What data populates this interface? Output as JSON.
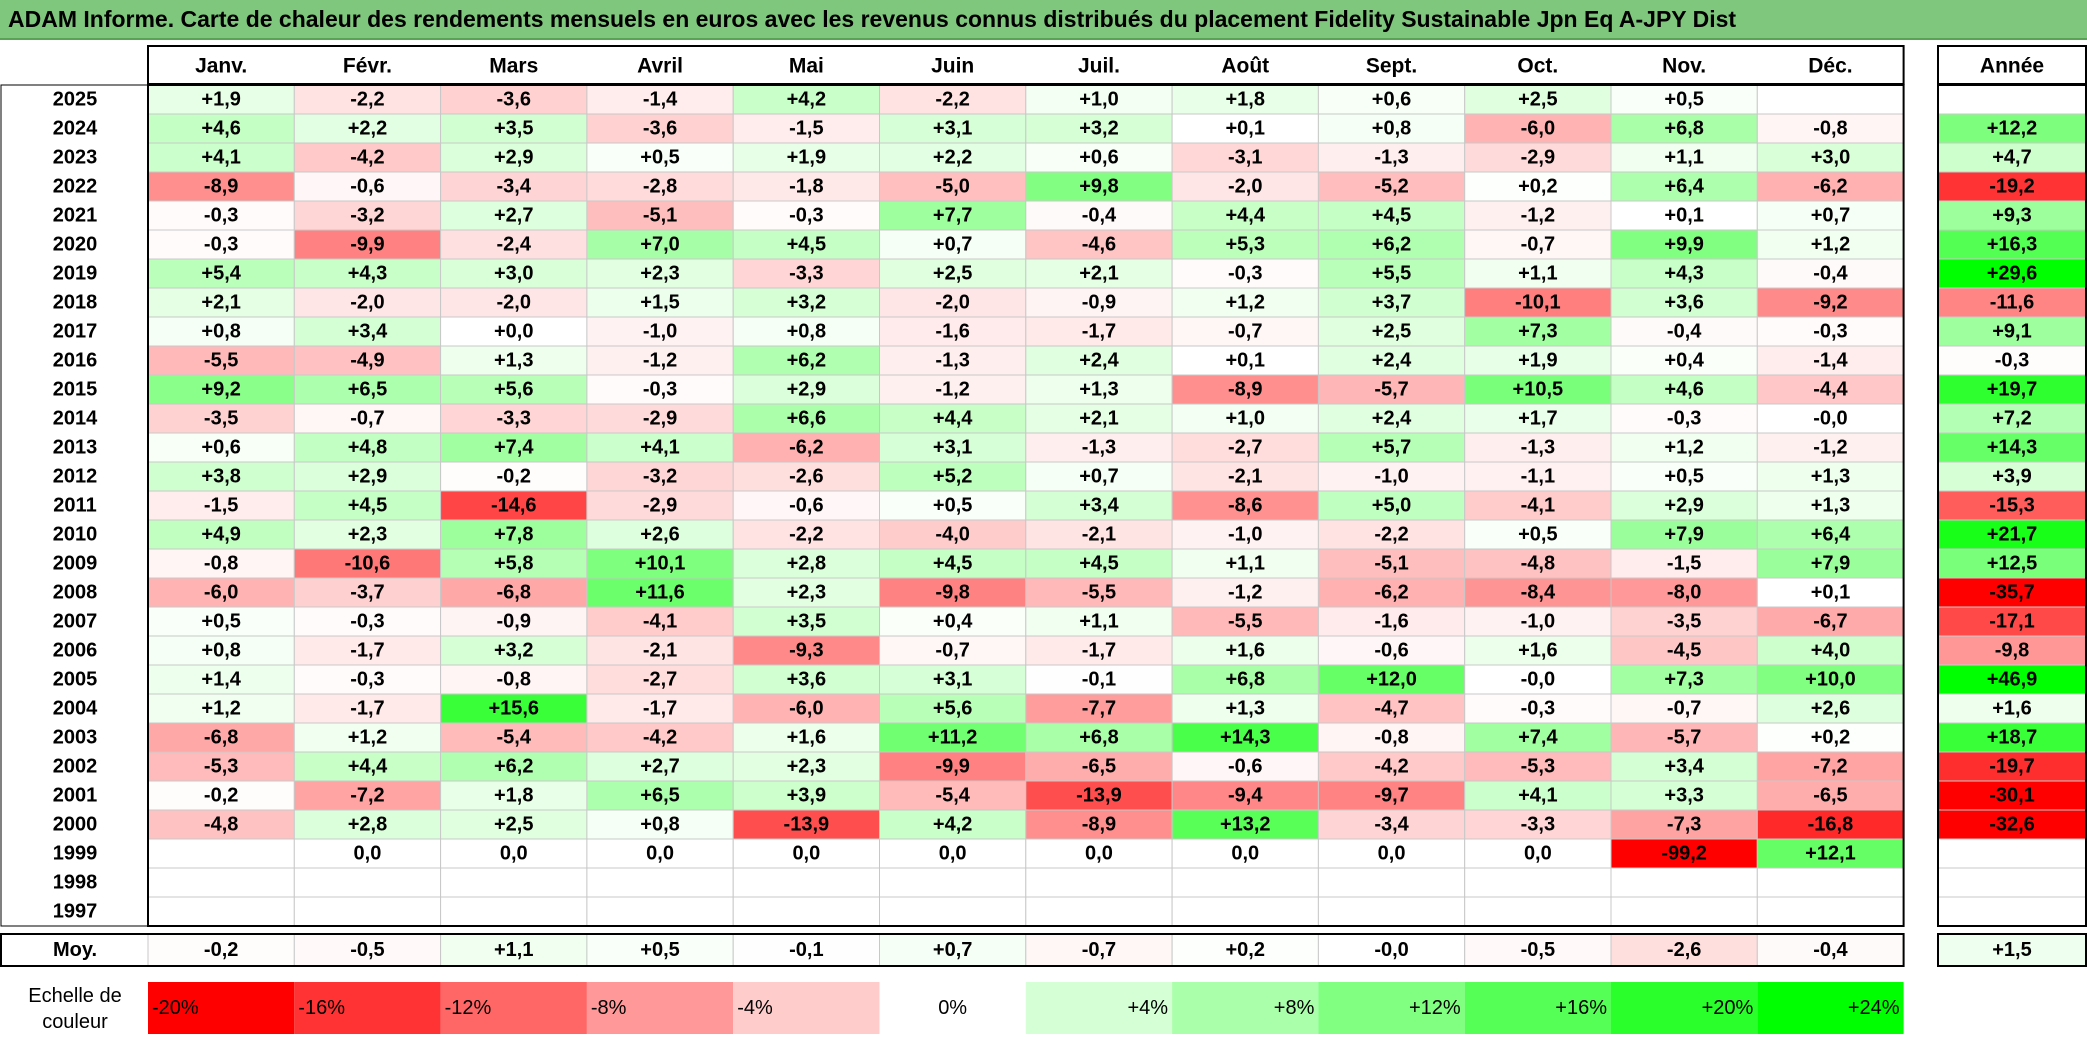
{
  "title": "ADAM Informe. Carte de chaleur des rendements mensuels en euros avec les revenus connus distribués du placement Fidelity Sustainable Jpn Eq A-JPY Dist",
  "chart_data": {
    "type": "heatmap",
    "months": [
      "Janv.",
      "Févr.",
      "Mars",
      "Avril",
      "Mai",
      "Juin",
      "Juil.",
      "Août",
      "Sept.",
      "Oct.",
      "Nov.",
      "Déc."
    ],
    "year_header": "Année",
    "rows": [
      {
        "year": "2025",
        "months": [
          "+1,9",
          "-2,2",
          "-3,6",
          "-1,4",
          "+4,2",
          "-2,2",
          "+1,0",
          "+1,8",
          "+0,6",
          "+2,5",
          "+0,5",
          ""
        ],
        "annual": ""
      },
      {
        "year": "2024",
        "months": [
          "+4,6",
          "+2,2",
          "+3,5",
          "-3,6",
          "-1,5",
          "+3,1",
          "+3,2",
          "+0,1",
          "+0,8",
          "-6,0",
          "+6,8",
          "-0,8"
        ],
        "annual": "+12,2"
      },
      {
        "year": "2023",
        "months": [
          "+4,1",
          "-4,2",
          "+2,9",
          "+0,5",
          "+1,9",
          "+2,2",
          "+0,6",
          "-3,1",
          "-1,3",
          "-2,9",
          "+1,1",
          "+3,0"
        ],
        "annual": "+4,7"
      },
      {
        "year": "2022",
        "months": [
          "-8,9",
          "-0,6",
          "-3,4",
          "-2,8",
          "-1,8",
          "-5,0",
          "+9,8",
          "-2,0",
          "-5,2",
          "+0,2",
          "+6,4",
          "-6,2"
        ],
        "annual": "-19,2"
      },
      {
        "year": "2021",
        "months": [
          "-0,3",
          "-3,2",
          "+2,7",
          "-5,1",
          "-0,3",
          "+7,7",
          "-0,4",
          "+4,4",
          "+4,5",
          "-1,2",
          "+0,1",
          "+0,7"
        ],
        "annual": "+9,3"
      },
      {
        "year": "2020",
        "months": [
          "-0,3",
          "-9,9",
          "-2,4",
          "+7,0",
          "+4,5",
          "+0,7",
          "-4,6",
          "+5,3",
          "+6,2",
          "-0,7",
          "+9,9",
          "+1,2"
        ],
        "annual": "+16,3"
      },
      {
        "year": "2019",
        "months": [
          "+5,4",
          "+4,3",
          "+3,0",
          "+2,3",
          "-3,3",
          "+2,5",
          "+2,1",
          "-0,3",
          "+5,5",
          "+1,1",
          "+4,3",
          "-0,4"
        ],
        "annual": "+29,6"
      },
      {
        "year": "2018",
        "months": [
          "+2,1",
          "-2,0",
          "-2,0",
          "+1,5",
          "+3,2",
          "-2,0",
          "-0,9",
          "+1,2",
          "+3,7",
          "-10,1",
          "+3,6",
          "-9,2"
        ],
        "annual": "-11,6"
      },
      {
        "year": "2017",
        "months": [
          "+0,8",
          "+3,4",
          "+0,0",
          "-1,0",
          "+0,8",
          "-1,6",
          "-1,7",
          "-0,7",
          "+2,5",
          "+7,3",
          "-0,4",
          "-0,3"
        ],
        "annual": "+9,1"
      },
      {
        "year": "2016",
        "months": [
          "-5,5",
          "-4,9",
          "+1,3",
          "-1,2",
          "+6,2",
          "-1,3",
          "+2,4",
          "+0,1",
          "+2,4",
          "+1,9",
          "+0,4",
          "-1,4"
        ],
        "annual": "-0,3"
      },
      {
        "year": "2015",
        "months": [
          "+9,2",
          "+6,5",
          "+5,6",
          "-0,3",
          "+2,9",
          "-1,2",
          "+1,3",
          "-8,9",
          "-5,7",
          "+10,5",
          "+4,6",
          "-4,4"
        ],
        "annual": "+19,7"
      },
      {
        "year": "2014",
        "months": [
          "-3,5",
          "-0,7",
          "-3,3",
          "-2,9",
          "+6,6",
          "+4,4",
          "+2,1",
          "+1,0",
          "+2,4",
          "+1,7",
          "-0,3",
          "-0,0"
        ],
        "annual": "+7,2"
      },
      {
        "year": "2013",
        "months": [
          "+0,6",
          "+4,8",
          "+7,4",
          "+4,1",
          "-6,2",
          "+3,1",
          "-1,3",
          "-2,7",
          "+5,7",
          "-1,3",
          "+1,2",
          "-1,2"
        ],
        "annual": "+14,3"
      },
      {
        "year": "2012",
        "months": [
          "+3,8",
          "+2,9",
          "-0,2",
          "-3,2",
          "-2,6",
          "+5,2",
          "+0,7",
          "-2,1",
          "-1,0",
          "-1,1",
          "+0,5",
          "+1,3"
        ],
        "annual": "+3,9"
      },
      {
        "year": "2011",
        "months": [
          "-1,5",
          "+4,5",
          "-14,6",
          "-2,9",
          "-0,6",
          "+0,5",
          "+3,4",
          "-8,6",
          "+5,0",
          "-4,1",
          "+2,9",
          "+1,3"
        ],
        "annual": "-15,3"
      },
      {
        "year": "2010",
        "months": [
          "+4,9",
          "+2,3",
          "+7,8",
          "+2,6",
          "-2,2",
          "-4,0",
          "-2,1",
          "-1,0",
          "-2,2",
          "+0,5",
          "+7,9",
          "+6,4"
        ],
        "annual": "+21,7"
      },
      {
        "year": "2009",
        "months": [
          "-0,8",
          "-10,6",
          "+5,8",
          "+10,1",
          "+2,8",
          "+4,5",
          "+4,5",
          "+1,1",
          "-5,1",
          "-4,8",
          "-1,5",
          "+7,9"
        ],
        "annual": "+12,5"
      },
      {
        "year": "2008",
        "months": [
          "-6,0",
          "-3,7",
          "-6,8",
          "+11,6",
          "+2,3",
          "-9,8",
          "-5,5",
          "-1,2",
          "-6,2",
          "-8,4",
          "-8,0",
          "+0,1"
        ],
        "annual": "-35,7"
      },
      {
        "year": "2007",
        "months": [
          "+0,5",
          "-0,3",
          "-0,9",
          "-4,1",
          "+3,5",
          "+0,4",
          "+1,1",
          "-5,5",
          "-1,6",
          "-1,0",
          "-3,5",
          "-6,7"
        ],
        "annual": "-17,1"
      },
      {
        "year": "2006",
        "months": [
          "+0,8",
          "-1,7",
          "+3,2",
          "-2,1",
          "-9,3",
          "-0,7",
          "-1,7",
          "+1,6",
          "-0,6",
          "+1,6",
          "-4,5",
          "+4,0"
        ],
        "annual": "-9,8"
      },
      {
        "year": "2005",
        "months": [
          "+1,4",
          "-0,3",
          "-0,8",
          "-2,7",
          "+3,6",
          "+3,1",
          "-0,1",
          "+6,8",
          "+12,0",
          "-0,0",
          "+7,3",
          "+10,0"
        ],
        "annual": "+46,9"
      },
      {
        "year": "2004",
        "months": [
          "+1,2",
          "-1,7",
          "+15,6",
          "-1,7",
          "-6,0",
          "+5,6",
          "-7,7",
          "+1,3",
          "-4,7",
          "-0,3",
          "-0,7",
          "+2,6"
        ],
        "annual": "+1,6"
      },
      {
        "year": "2003",
        "months": [
          "-6,8",
          "+1,2",
          "-5,4",
          "-4,2",
          "+1,6",
          "+11,2",
          "+6,8",
          "+14,3",
          "-0,8",
          "+7,4",
          "-5,7",
          "+0,2"
        ],
        "annual": "+18,7"
      },
      {
        "year": "2002",
        "months": [
          "-5,3",
          "+4,4",
          "+6,2",
          "+2,7",
          "+2,3",
          "-9,9",
          "-6,5",
          "-0,6",
          "-4,2",
          "-5,3",
          "+3,4",
          "-7,2"
        ],
        "annual": "-19,7"
      },
      {
        "year": "2001",
        "months": [
          "-0,2",
          "-7,2",
          "+1,8",
          "+6,5",
          "+3,9",
          "-5,4",
          "-13,9",
          "-9,4",
          "-9,7",
          "+4,1",
          "+3,3",
          "-6,5"
        ],
        "annual": "-30,1"
      },
      {
        "year": "2000",
        "months": [
          "-4,8",
          "+2,8",
          "+2,5",
          "+0,8",
          "-13,9",
          "+4,2",
          "-8,9",
          "+13,2",
          "-3,4",
          "-3,3",
          "-7,3",
          "-16,8"
        ],
        "annual": "-32,6"
      },
      {
        "year": "1999",
        "months": [
          "",
          "0,0",
          "0,0",
          "0,0",
          "0,0",
          "0,0",
          "0,0",
          "0,0",
          "0,0",
          "0,0",
          "-99,2",
          "+12,1"
        ],
        "annual": ""
      },
      {
        "year": "1998",
        "months": [
          "",
          "",
          "",
          "",
          "",
          "",
          "",
          "",
          "",
          "",
          "",
          ""
        ],
        "annual": ""
      },
      {
        "year": "1997",
        "months": [
          "",
          "",
          "",
          "",
          "",
          "",
          "",
          "",
          "",
          "",
          "",
          ""
        ],
        "annual": ""
      }
    ],
    "average": {
      "label": "Moy.",
      "months": [
        "-0,2",
        "-0,5",
        "+1,1",
        "+0,5",
        "-0,1",
        "+0,7",
        "-0,7",
        "+0,2",
        "-0,0",
        "-0,5",
        "-2,6",
        "-0,4"
      ],
      "annual": "+1,5"
    },
    "scale": {
      "label_line1": "Echelle de",
      "label_line2": "couleur",
      "stops": [
        "-20%",
        "-16%",
        "-12%",
        "-8%",
        "-4%",
        "0%",
        "+4%",
        "+8%",
        "+12%",
        "+16%",
        "+20%",
        "+24%"
      ],
      "stop_values": [
        -20,
        -16,
        -12,
        -8,
        -4,
        0,
        4,
        8,
        12,
        16,
        20,
        24
      ]
    },
    "colors": {
      "negative_max": "#ff0000",
      "neutral": "#ffffff",
      "positive_max": "#00ff00",
      "title_bg": "#7fc77c"
    }
  }
}
